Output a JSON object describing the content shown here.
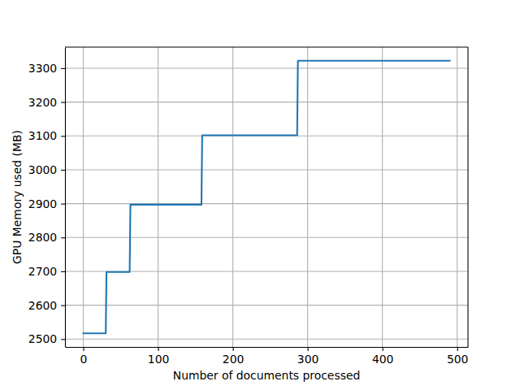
{
  "chart_data": {
    "type": "line",
    "x_label": "Number of documents processed",
    "y_label": "GPU Memory used (MB)",
    "x": [
      0,
      30,
      31,
      62,
      63,
      158,
      159,
      286,
      287,
      490
    ],
    "values": [
      2517,
      2517,
      2698,
      2698,
      2897,
      2897,
      3102,
      3102,
      3322,
      3322
    ],
    "color": "#1f77b4",
    "xlim": [
      -24.5,
      514.5
    ],
    "xticks": [
      0,
      100,
      200,
      300,
      400,
      500
    ],
    "ylim": [
      2476.75,
      3362.25
    ],
    "yticks": [
      2500,
      2600,
      2700,
      2800,
      2900,
      3000,
      3100,
      3200,
      3300
    ],
    "grid": true
  }
}
